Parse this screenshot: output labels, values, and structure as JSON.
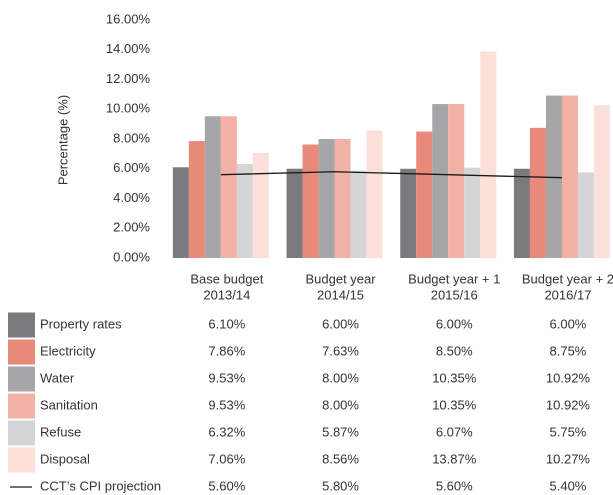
{
  "chart_data": {
    "type": "bar",
    "ylabel": "Percentage (%)",
    "categories": [
      [
        "Base budget",
        "2013/14"
      ],
      [
        "Budget year",
        "2014/15"
      ],
      [
        "Budget year + 1",
        "2015/16"
      ],
      [
        "Budget year + 2",
        "2016/17"
      ]
    ],
    "ylim": [
      0,
      16
    ],
    "yticks": [
      {
        "value": 0,
        "label": "0.00%"
      },
      {
        "value": 2,
        "label": "2.00%"
      },
      {
        "value": 4,
        "label": "4.00%"
      },
      {
        "value": 6,
        "label": "6.00%"
      },
      {
        "value": 8,
        "label": "8.00%"
      },
      {
        "value": 10,
        "label": "10.00%"
      },
      {
        "value": 12,
        "label": "12.00%"
      },
      {
        "value": 14,
        "label": "14.00%"
      },
      {
        "value": 16,
        "label": "16.00%"
      }
    ],
    "series": [
      {
        "name": "Property rates",
        "color": "#7b7b7d",
        "values": [
          6.1,
          6.0,
          6.0,
          6.0
        ],
        "value_labels": [
          "6.10%",
          "6.00%",
          "6.00%",
          "6.00%"
        ]
      },
      {
        "name": "Electricity",
        "color": "#e8897a",
        "values": [
          7.86,
          7.63,
          8.5,
          8.75
        ],
        "value_labels": [
          "7.86%",
          "7.63%",
          "8.50%",
          "8.75%"
        ]
      },
      {
        "name": "Water",
        "color": "#a6a6a8",
        "values": [
          9.53,
          8.0,
          10.35,
          10.92
        ],
        "value_labels": [
          "9.53%",
          "8.00%",
          "10.35%",
          "10.92%"
        ]
      },
      {
        "name": "Sanitation",
        "color": "#f2b1a5",
        "values": [
          9.53,
          8.0,
          10.35,
          10.92
        ],
        "value_labels": [
          "9.53%",
          "8.00%",
          "10.35%",
          "10.92%"
        ]
      },
      {
        "name": "Refuse",
        "color": "#d5d5d7",
        "values": [
          6.32,
          5.87,
          6.07,
          5.75
        ],
        "value_labels": [
          "6.32%",
          "5.87%",
          "6.07%",
          "5.75%"
        ]
      },
      {
        "name": "Disposal",
        "color": "#fbe0da",
        "values": [
          7.06,
          8.56,
          13.87,
          10.27
        ],
        "value_labels": [
          "7.06%",
          "8.56%",
          "13.87%",
          "10.27%"
        ]
      },
      {
        "name": "CCT’s CPI projection",
        "type": "line",
        "color": "#1a1a1a",
        "values": [
          5.6,
          5.8,
          5.6,
          5.4
        ],
        "value_labels": [
          "5.60%",
          "5.80%",
          "5.60%",
          "5.40%"
        ]
      }
    ]
  }
}
